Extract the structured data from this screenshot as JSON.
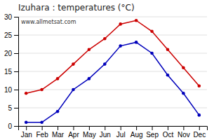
{
  "chart_data": {
    "type": "line",
    "title": "Izuhara : temperatures (°C)",
    "categories": [
      "Jan",
      "Feb",
      "Mar",
      "Apr",
      "May",
      "Jun",
      "Jul",
      "Aug",
      "Sep",
      "Oct",
      "Nov",
      "Dec"
    ],
    "series": [
      {
        "color": "#cc0000",
        "marker": "circle",
        "line_style": "solid",
        "values": [
          9,
          10,
          13,
          17,
          21,
          24,
          28,
          29,
          26,
          21,
          16,
          11
        ]
      },
      {
        "color": "#0000bb",
        "marker": "circle",
        "line_style": "solid",
        "values": [
          1,
          1,
          4,
          10,
          13,
          17,
          22,
          23,
          20,
          14,
          9,
          3
        ]
      }
    ],
    "ylim": [
      0,
      30
    ],
    "yticks": [
      0,
      5,
      10,
      15,
      20,
      25,
      30
    ],
    "grid": true,
    "annotations": [
      "www.allmetsat.com"
    ]
  }
}
